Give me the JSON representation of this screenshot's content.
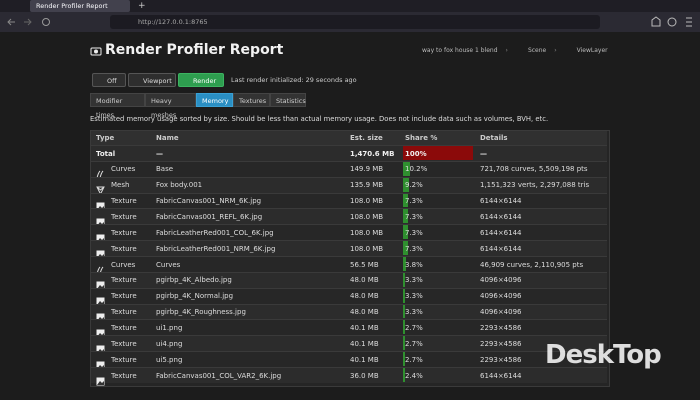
{
  "browser": {
    "tab_title": "Render Profiler Report",
    "new_tab": "+",
    "url": "http://127.0.0.1:8765"
  },
  "header": {
    "title": "Render Profiler Report",
    "breadcrumb": [
      "way to fox house 1 blend",
      "Scene",
      "ViewLayer"
    ]
  },
  "toolbar": {
    "modes": [
      "Off",
      "Viewport",
      "Render"
    ],
    "active_mode": 2,
    "status": "Last render initialized: 29 seconds ago"
  },
  "tabs": {
    "items": [
      "Modifier times",
      "Heavy meshes",
      "Memory",
      "Textures",
      "Statistics"
    ],
    "active": 2
  },
  "description": "Estimated memory usage sorted by size. Should be less than actual memory usage. Does not include data such as volumes, BVH, etc.",
  "table": {
    "columns": [
      "Type",
      "Name",
      "Est. size",
      "Share %",
      "Details"
    ],
    "total": [
      "Total",
      "—",
      "1,470.6 MB",
      "100%",
      "—"
    ],
    "rows": [
      [
        "Curves",
        "Base",
        "149.9 MB",
        "10.2%",
        "721,708 curves, 5,509,198 pts"
      ],
      [
        "Mesh",
        "Fox body.001",
        "135.9 MB",
        "9.2%",
        "1,151,323 verts, 2,297,088 tris"
      ],
      [
        "Texture",
        "FabricCanvas001_NRM_6K.jpg",
        "108.0 MB",
        "7.3%",
        "6144×6144"
      ],
      [
        "Texture",
        "FabricCanvas001_REFL_6K.jpg",
        "108.0 MB",
        "7.3%",
        "6144×6144"
      ],
      [
        "Texture",
        "FabricLeatherRed001_COL_6K.jpg",
        "108.0 MB",
        "7.3%",
        "6144×6144"
      ],
      [
        "Texture",
        "FabricLeatherRed001_NRM_6K.jpg",
        "108.0 MB",
        "7.3%",
        "6144×6144"
      ],
      [
        "Curves",
        "Curves",
        "56.5 MB",
        "3.8%",
        "46,909 curves, 2,110,905 pts"
      ],
      [
        "Texture",
        "pgirbp_4K_Albedo.jpg",
        "48.0 MB",
        "3.3%",
        "4096×4096"
      ],
      [
        "Texture",
        "pgirbp_4K_Normal.jpg",
        "48.0 MB",
        "3.3%",
        "4096×4096"
      ],
      [
        "Texture",
        "pgirbp_4K_Roughness.jpg",
        "48.0 MB",
        "3.3%",
        "4096×4096"
      ],
      [
        "Texture",
        "ui1.png",
        "40.1 MB",
        "2.7%",
        "2293×4586"
      ],
      [
        "Texture",
        "ui4.png",
        "40.1 MB",
        "2.7%",
        "2293×4586"
      ],
      [
        "Texture",
        "ui5.png",
        "40.1 MB",
        "2.7%",
        "2293×4586"
      ],
      [
        "Texture",
        "FabricCanvas001_COL_VAR2_6K.jpg",
        "36.0 MB",
        "2.4%",
        "6144×6144"
      ]
    ]
  },
  "watermark": "DeskTop"
}
